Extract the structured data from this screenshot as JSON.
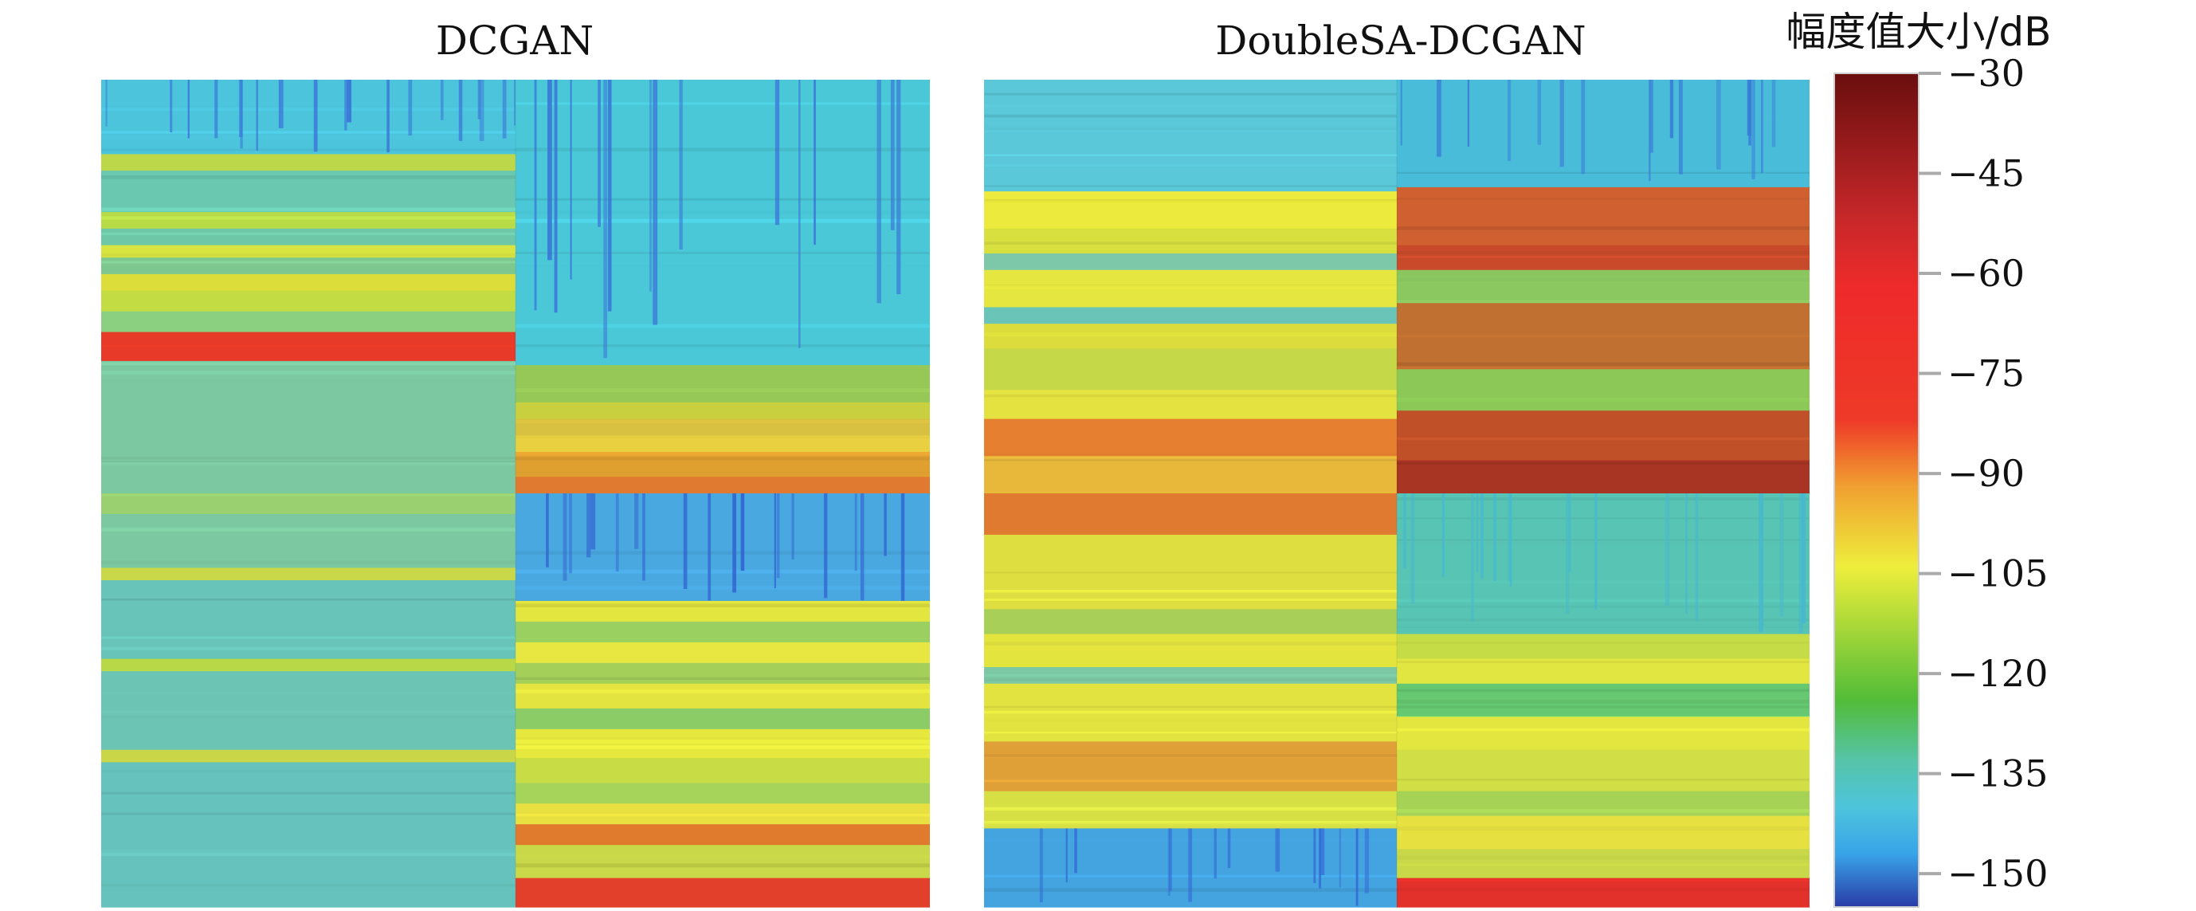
{
  "chart_data": [
    {
      "type": "heatmap",
      "title": "DCGAN",
      "layout": "2x2 spectrogram grid",
      "quadrants": [
        {
          "position": "top-left",
          "bands": [
            {
              "from": 0.0,
              "to": 0.18,
              "color": "#4cc4dc",
              "stripes": "#3a6fd8"
            },
            {
              "from": 0.18,
              "to": 0.22,
              "color": "#bcd84a"
            },
            {
              "from": 0.22,
              "to": 0.32,
              "color": "#6ac8b0"
            },
            {
              "from": 0.32,
              "to": 0.36,
              "color": "#b8dc48"
            },
            {
              "from": 0.36,
              "to": 0.4,
              "color": "#6ec8a8"
            },
            {
              "from": 0.4,
              "to": 0.43,
              "color": "#d8e440"
            },
            {
              "from": 0.43,
              "to": 0.47,
              "color": "#7ec890"
            },
            {
              "from": 0.47,
              "to": 0.51,
              "color": "#dcdc3a"
            },
            {
              "from": 0.51,
              "to": 0.56,
              "color": "#c4dc44"
            },
            {
              "from": 0.56,
              "to": 0.61,
              "color": "#8ad080"
            },
            {
              "from": 0.61,
              "to": 0.68,
              "color": "#e83a28"
            },
            {
              "from": 0.68,
              "to": 1.0,
              "color": "#7cc8a0"
            }
          ]
        },
        {
          "position": "top-right",
          "bands": [
            {
              "from": 0.0,
              "to": 0.69,
              "color": "#4ac8d8",
              "stripes": "#3a6fd8"
            },
            {
              "from": 0.69,
              "to": 0.78,
              "color": "#96c858"
            },
            {
              "from": 0.78,
              "to": 0.82,
              "color": "#c8d040"
            },
            {
              "from": 0.82,
              "to": 0.86,
              "color": "#d8c040"
            },
            {
              "from": 0.86,
              "to": 0.9,
              "color": "#e8d040"
            },
            {
              "from": 0.9,
              "to": 0.96,
              "color": "#e0a030"
            },
            {
              "from": 0.96,
              "to": 1.0,
              "color": "#e07a30"
            }
          ]
        },
        {
          "position": "bottom-left",
          "bands": [
            {
              "from": 0.0,
              "to": 0.05,
              "color": "#9ad070"
            },
            {
              "from": 0.05,
              "to": 0.18,
              "color": "#7cc8a0"
            },
            {
              "from": 0.18,
              "to": 0.21,
              "color": "#c8d848"
            },
            {
              "from": 0.21,
              "to": 0.4,
              "color": "#68c4b8"
            },
            {
              "from": 0.4,
              "to": 0.43,
              "color": "#b8d848"
            },
            {
              "from": 0.43,
              "to": 0.62,
              "color": "#6cc4b4"
            },
            {
              "from": 0.62,
              "to": 0.65,
              "color": "#c8d648"
            },
            {
              "from": 0.65,
              "to": 1.0,
              "color": "#66c2bc"
            }
          ]
        },
        {
          "position": "bottom-right",
          "bands": [
            {
              "from": 0.0,
              "to": 0.26,
              "color": "#4aa8e0",
              "stripes": "#3060d0"
            },
            {
              "from": 0.26,
              "to": 0.31,
              "color": "#e4e640"
            },
            {
              "from": 0.31,
              "to": 0.36,
              "color": "#9ad060"
            },
            {
              "from": 0.36,
              "to": 0.41,
              "color": "#e8e640"
            },
            {
              "from": 0.41,
              "to": 0.46,
              "color": "#a4d05a"
            },
            {
              "from": 0.46,
              "to": 0.52,
              "color": "#e4e440"
            },
            {
              "from": 0.52,
              "to": 0.57,
              "color": "#8ccc66"
            },
            {
              "from": 0.57,
              "to": 0.64,
              "color": "#e6e83e"
            },
            {
              "from": 0.64,
              "to": 0.7,
              "color": "#c8dc46"
            },
            {
              "from": 0.7,
              "to": 0.75,
              "color": "#a6d45a"
            },
            {
              "from": 0.75,
              "to": 0.8,
              "color": "#e8e040"
            },
            {
              "from": 0.8,
              "to": 0.85,
              "color": "#e07a2c"
            },
            {
              "from": 0.85,
              "to": 0.93,
              "color": "#c8d848"
            },
            {
              "from": 0.93,
              "to": 1.0,
              "color": "#e2402a"
            }
          ]
        }
      ]
    },
    {
      "type": "heatmap",
      "title": "DoubleSA-DCGAN",
      "layout": "2x2 spectrogram grid",
      "quadrants": [
        {
          "position": "top-left",
          "bands": [
            {
              "from": 0.0,
              "to": 0.27,
              "color": "#5ac8d8"
            },
            {
              "from": 0.27,
              "to": 0.36,
              "color": "#ecea3c"
            },
            {
              "from": 0.36,
              "to": 0.42,
              "color": "#d8e040"
            },
            {
              "from": 0.42,
              "to": 0.46,
              "color": "#7cc8a8"
            },
            {
              "from": 0.46,
              "to": 0.55,
              "color": "#e6e640"
            },
            {
              "from": 0.55,
              "to": 0.59,
              "color": "#6ac4b8"
            },
            {
              "from": 0.59,
              "to": 0.65,
              "color": "#dcdc3c"
            },
            {
              "from": 0.65,
              "to": 0.75,
              "color": "#c4d848"
            },
            {
              "from": 0.75,
              "to": 0.82,
              "color": "#e4e240"
            },
            {
              "from": 0.82,
              "to": 0.91,
              "color": "#e68030"
            },
            {
              "from": 0.91,
              "to": 1.0,
              "color": "#e8b83a"
            }
          ]
        },
        {
          "position": "top-right",
          "bands": [
            {
              "from": 0.0,
              "to": 0.26,
              "color": "#48bcd8",
              "stripes": "#3a7ad8"
            },
            {
              "from": 0.26,
              "to": 0.4,
              "color": "#d06030"
            },
            {
              "from": 0.4,
              "to": 0.46,
              "color": "#c84a2a"
            },
            {
              "from": 0.46,
              "to": 0.54,
              "color": "#8cc860"
            },
            {
              "from": 0.54,
              "to": 0.7,
              "color": "#c07030"
            },
            {
              "from": 0.7,
              "to": 0.8,
              "color": "#8cc858"
            },
            {
              "from": 0.8,
              "to": 0.92,
              "color": "#c05028"
            },
            {
              "from": 0.92,
              "to": 1.0,
              "color": "#a83424"
            }
          ]
        },
        {
          "position": "bottom-left",
          "bands": [
            {
              "from": 0.0,
              "to": 0.1,
              "color": "#e07a30"
            },
            {
              "from": 0.1,
              "to": 0.28,
              "color": "#dede40"
            },
            {
              "from": 0.28,
              "to": 0.34,
              "color": "#a8d058"
            },
            {
              "from": 0.34,
              "to": 0.42,
              "color": "#e4e43e"
            },
            {
              "from": 0.42,
              "to": 0.46,
              "color": "#7cc8a4"
            },
            {
              "from": 0.46,
              "to": 0.6,
              "color": "#e2e240"
            },
            {
              "from": 0.6,
              "to": 0.72,
              "color": "#e0a038"
            },
            {
              "from": 0.72,
              "to": 0.81,
              "color": "#d6e044"
            },
            {
              "from": 0.81,
              "to": 1.0,
              "color": "#44a4e0",
              "stripes": "#3266d4"
            }
          ]
        },
        {
          "position": "bottom-right",
          "bands": [
            {
              "from": 0.0,
              "to": 0.34,
              "color": "#58c4b4",
              "stripes": "#46b8d0"
            },
            {
              "from": 0.34,
              "to": 0.4,
              "color": "#c6dc46"
            },
            {
              "from": 0.4,
              "to": 0.46,
              "color": "#e2e640"
            },
            {
              "from": 0.46,
              "to": 0.54,
              "color": "#66c870"
            },
            {
              "from": 0.54,
              "to": 0.62,
              "color": "#e4e640"
            },
            {
              "from": 0.62,
              "to": 0.72,
              "color": "#d2de46"
            },
            {
              "from": 0.72,
              "to": 0.78,
              "color": "#a6d256"
            },
            {
              "from": 0.78,
              "to": 0.86,
              "color": "#e6e040"
            },
            {
              "from": 0.86,
              "to": 0.93,
              "color": "#c8d848"
            },
            {
              "from": 0.93,
              "to": 1.0,
              "color": "#e2302a"
            }
          ]
        }
      ]
    }
  ],
  "colorbar": {
    "title": "幅度值大小/dB",
    "range": [
      -155,
      -30
    ],
    "ticks": [
      -30,
      -45,
      -60,
      -75,
      -90,
      -105,
      -120,
      -135,
      -150
    ],
    "tick_labels": [
      "−30",
      "−45",
      "−60",
      "−75",
      "−90",
      "−105",
      "−120",
      "−135",
      "−150"
    ],
    "stops": [
      {
        "value": -30,
        "color": "#6a0e0e"
      },
      {
        "value": -52,
        "color": "#c8282a"
      },
      {
        "value": -62,
        "color": "#ee2a2a"
      },
      {
        "value": -82,
        "color": "#ee3a28"
      },
      {
        "value": -92,
        "color": "#f0a030"
      },
      {
        "value": -104,
        "color": "#eeee3c"
      },
      {
        "value": -113,
        "color": "#a8d838"
      },
      {
        "value": -124,
        "color": "#52bc38"
      },
      {
        "value": -133,
        "color": "#56c4a8"
      },
      {
        "value": -140,
        "color": "#4ec4dc"
      },
      {
        "value": -147,
        "color": "#38a4e8"
      },
      {
        "value": -155,
        "color": "#2a3ca8"
      }
    ]
  }
}
